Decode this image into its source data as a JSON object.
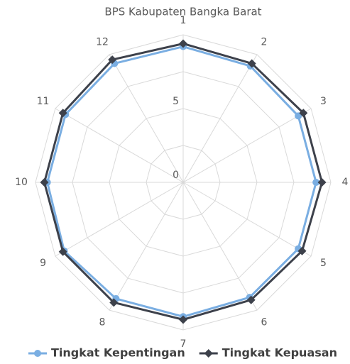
{
  "chart_data": {
    "type": "radar",
    "title": "BPS Kabupaten Bangka Barat",
    "categories": [
      "1",
      "2",
      "3",
      "4",
      "5",
      "6",
      "7",
      "8",
      "9",
      "10",
      "11",
      "12"
    ],
    "series": [
      {
        "name": "Tingkat Kepentingan",
        "color": "#7aaee2",
        "marker": "circle",
        "values": [
          9.2,
          9.1,
          9.0,
          9.0,
          9.0,
          9.0,
          9.1,
          9.1,
          9.3,
          9.2,
          9.2,
          9.3
        ]
      },
      {
        "name": "Tingkat Kepuasan",
        "color": "#3d414b",
        "marker": "diamond",
        "values": [
          9.4,
          9.3,
          9.4,
          9.4,
          9.3,
          9.2,
          9.3,
          9.4,
          9.4,
          9.4,
          9.4,
          9.6
        ]
      }
    ],
    "ylim": [
      0,
      10
    ],
    "yticks": [
      0,
      5
    ],
    "minor_grid": [
      2.5,
      7.5,
      10
    ],
    "grid": true,
    "legend": "bottom"
  }
}
